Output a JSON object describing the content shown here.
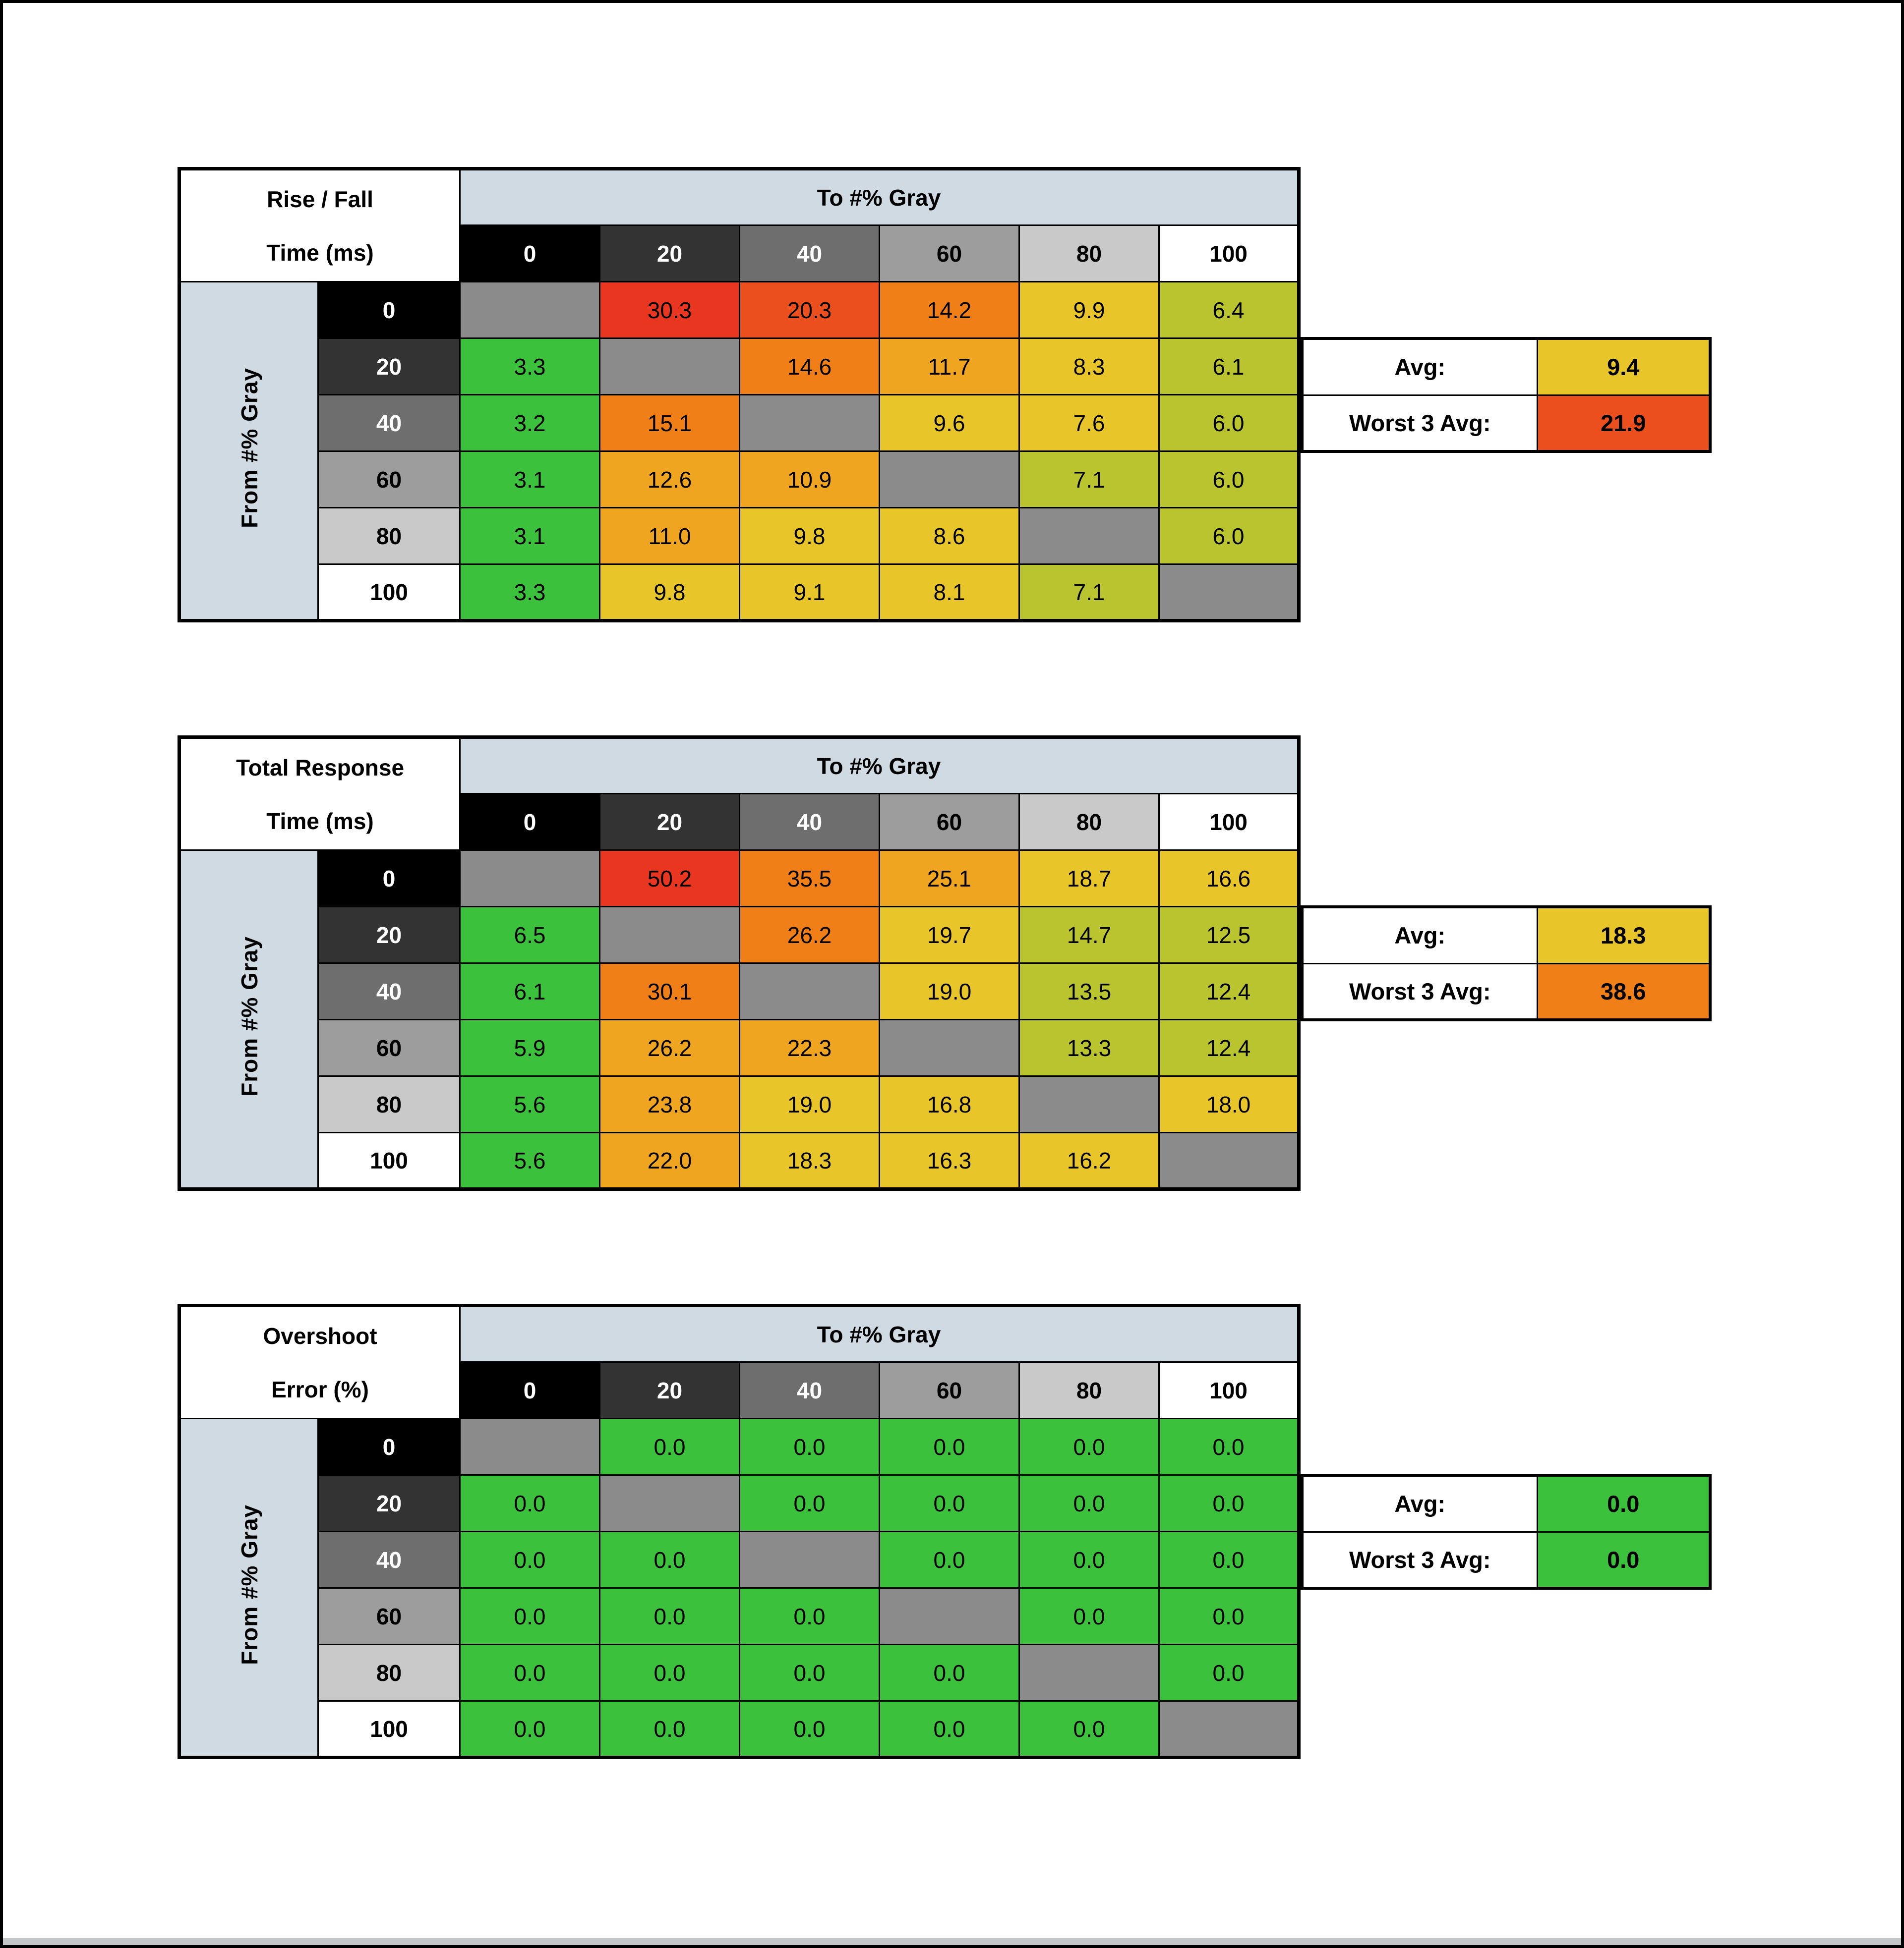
{
  "page": {
    "background": "#ffffff",
    "frame_color": "#000000"
  },
  "palette": {
    "green": "#3cc13c",
    "yg": "#b9c42e",
    "yellow": "#e8c629",
    "amber": "#f0a520",
    "orange": "#f07f18",
    "redorange": "#ec4f1e",
    "red": "#e93620",
    "diag": "#8b8b8b",
    "band": "#cfdae3"
  },
  "shades": {
    "0": {
      "bg": "#000000",
      "fg": "#ffffff"
    },
    "20": {
      "bg": "#333333",
      "fg": "#ffffff"
    },
    "40": {
      "bg": "#6e6e6e",
      "fg": "#ffffff"
    },
    "60": {
      "bg": "#9d9d9d",
      "fg": "#000000"
    },
    "80": {
      "bg": "#c9c9c9",
      "fg": "#000000"
    },
    "100": {
      "bg": "#ffffff",
      "fg": "#000000"
    }
  },
  "chart_data": [
    {
      "type": "heatmap",
      "name": "rise-fall-time",
      "title": [
        "Rise / Fall",
        "Time (ms)"
      ],
      "col_axis_label": "To #% Gray",
      "row_axis_label": "From #% Gray",
      "columns": [
        "0",
        "20",
        "40",
        "60",
        "80",
        "100"
      ],
      "rows": [
        "0",
        "20",
        "40",
        "60",
        "80",
        "100"
      ],
      "cells": [
        [
          null,
          {
            "v": "30.3",
            "c": "red"
          },
          {
            "v": "20.3",
            "c": "redorange"
          },
          {
            "v": "14.2",
            "c": "orange"
          },
          {
            "v": "9.9",
            "c": "yellow"
          },
          {
            "v": "6.4",
            "c": "yg"
          }
        ],
        [
          {
            "v": "3.3",
            "c": "green"
          },
          null,
          {
            "v": "14.6",
            "c": "orange"
          },
          {
            "v": "11.7",
            "c": "amber"
          },
          {
            "v": "8.3",
            "c": "yellow"
          },
          {
            "v": "6.1",
            "c": "yg"
          }
        ],
        [
          {
            "v": "3.2",
            "c": "green"
          },
          {
            "v": "15.1",
            "c": "orange"
          },
          null,
          {
            "v": "9.6",
            "c": "yellow"
          },
          {
            "v": "7.6",
            "c": "yellow"
          },
          {
            "v": "6.0",
            "c": "yg"
          }
        ],
        [
          {
            "v": "3.1",
            "c": "green"
          },
          {
            "v": "12.6",
            "c": "amber"
          },
          {
            "v": "10.9",
            "c": "amber"
          },
          null,
          {
            "v": "7.1",
            "c": "yg"
          },
          {
            "v": "6.0",
            "c": "yg"
          }
        ],
        [
          {
            "v": "3.1",
            "c": "green"
          },
          {
            "v": "11.0",
            "c": "amber"
          },
          {
            "v": "9.8",
            "c": "yellow"
          },
          {
            "v": "8.6",
            "c": "yellow"
          },
          null,
          {
            "v": "6.0",
            "c": "yg"
          }
        ],
        [
          {
            "v": "3.3",
            "c": "green"
          },
          {
            "v": "9.8",
            "c": "yellow"
          },
          {
            "v": "9.1",
            "c": "yellow"
          },
          {
            "v": "8.1",
            "c": "yellow"
          },
          {
            "v": "7.1",
            "c": "yg"
          },
          null
        ]
      ],
      "summary": {
        "avg_label": "Avg:",
        "avg_value": "9.4",
        "avg_color": "yellow",
        "worst_label": "Worst 3 Avg:",
        "worst_value": "21.9",
        "worst_color": "redorange"
      }
    },
    {
      "type": "heatmap",
      "name": "total-response-time",
      "title": [
        "Total Response",
        "Time (ms)"
      ],
      "col_axis_label": "To #% Gray",
      "row_axis_label": "From #% Gray",
      "columns": [
        "0",
        "20",
        "40",
        "60",
        "80",
        "100"
      ],
      "rows": [
        "0",
        "20",
        "40",
        "60",
        "80",
        "100"
      ],
      "cells": [
        [
          null,
          {
            "v": "50.2",
            "c": "red"
          },
          {
            "v": "35.5",
            "c": "orange"
          },
          {
            "v": "25.1",
            "c": "amber"
          },
          {
            "v": "18.7",
            "c": "yellow"
          },
          {
            "v": "16.6",
            "c": "yellow"
          }
        ],
        [
          {
            "v": "6.5",
            "c": "green"
          },
          null,
          {
            "v": "26.2",
            "c": "orange"
          },
          {
            "v": "19.7",
            "c": "yellow"
          },
          {
            "v": "14.7",
            "c": "yg"
          },
          {
            "v": "12.5",
            "c": "yg"
          }
        ],
        [
          {
            "v": "6.1",
            "c": "green"
          },
          {
            "v": "30.1",
            "c": "orange"
          },
          null,
          {
            "v": "19.0",
            "c": "yellow"
          },
          {
            "v": "13.5",
            "c": "yg"
          },
          {
            "v": "12.4",
            "c": "yg"
          }
        ],
        [
          {
            "v": "5.9",
            "c": "green"
          },
          {
            "v": "26.2",
            "c": "amber"
          },
          {
            "v": "22.3",
            "c": "amber"
          },
          null,
          {
            "v": "13.3",
            "c": "yg"
          },
          {
            "v": "12.4",
            "c": "yg"
          }
        ],
        [
          {
            "v": "5.6",
            "c": "green"
          },
          {
            "v": "23.8",
            "c": "amber"
          },
          {
            "v": "19.0",
            "c": "yellow"
          },
          {
            "v": "16.8",
            "c": "yellow"
          },
          null,
          {
            "v": "18.0",
            "c": "yellow"
          }
        ],
        [
          {
            "v": "5.6",
            "c": "green"
          },
          {
            "v": "22.0",
            "c": "amber"
          },
          {
            "v": "18.3",
            "c": "yellow"
          },
          {
            "v": "16.3",
            "c": "yellow"
          },
          {
            "v": "16.2",
            "c": "yellow"
          },
          null
        ]
      ],
      "summary": {
        "avg_label": "Avg:",
        "avg_value": "18.3",
        "avg_color": "yellow",
        "worst_label": "Worst 3 Avg:",
        "worst_value": "38.6",
        "worst_color": "orange"
      }
    },
    {
      "type": "heatmap",
      "name": "overshoot-error",
      "title": [
        "Overshoot",
        "Error (%)"
      ],
      "col_axis_label": "To #% Gray",
      "row_axis_label": "From #% Gray",
      "columns": [
        "0",
        "20",
        "40",
        "60",
        "80",
        "100"
      ],
      "rows": [
        "0",
        "20",
        "40",
        "60",
        "80",
        "100"
      ],
      "cells": [
        [
          null,
          {
            "v": "0.0",
            "c": "green"
          },
          {
            "v": "0.0",
            "c": "green"
          },
          {
            "v": "0.0",
            "c": "green"
          },
          {
            "v": "0.0",
            "c": "green"
          },
          {
            "v": "0.0",
            "c": "green"
          }
        ],
        [
          {
            "v": "0.0",
            "c": "green"
          },
          null,
          {
            "v": "0.0",
            "c": "green"
          },
          {
            "v": "0.0",
            "c": "green"
          },
          {
            "v": "0.0",
            "c": "green"
          },
          {
            "v": "0.0",
            "c": "green"
          }
        ],
        [
          {
            "v": "0.0",
            "c": "green"
          },
          {
            "v": "0.0",
            "c": "green"
          },
          null,
          {
            "v": "0.0",
            "c": "green"
          },
          {
            "v": "0.0",
            "c": "green"
          },
          {
            "v": "0.0",
            "c": "green"
          }
        ],
        [
          {
            "v": "0.0",
            "c": "green"
          },
          {
            "v": "0.0",
            "c": "green"
          },
          {
            "v": "0.0",
            "c": "green"
          },
          null,
          {
            "v": "0.0",
            "c": "green"
          },
          {
            "v": "0.0",
            "c": "green"
          }
        ],
        [
          {
            "v": "0.0",
            "c": "green"
          },
          {
            "v": "0.0",
            "c": "green"
          },
          {
            "v": "0.0",
            "c": "green"
          },
          {
            "v": "0.0",
            "c": "green"
          },
          null,
          {
            "v": "0.0",
            "c": "green"
          }
        ],
        [
          {
            "v": "0.0",
            "c": "green"
          },
          {
            "v": "0.0",
            "c": "green"
          },
          {
            "v": "0.0",
            "c": "green"
          },
          {
            "v": "0.0",
            "c": "green"
          },
          {
            "v": "0.0",
            "c": "green"
          },
          null
        ]
      ],
      "summary": {
        "avg_label": "Avg:",
        "avg_value": "0.0",
        "avg_color": "green",
        "worst_label": "Worst 3 Avg:",
        "worst_value": "0.0",
        "worst_color": "green"
      }
    }
  ]
}
